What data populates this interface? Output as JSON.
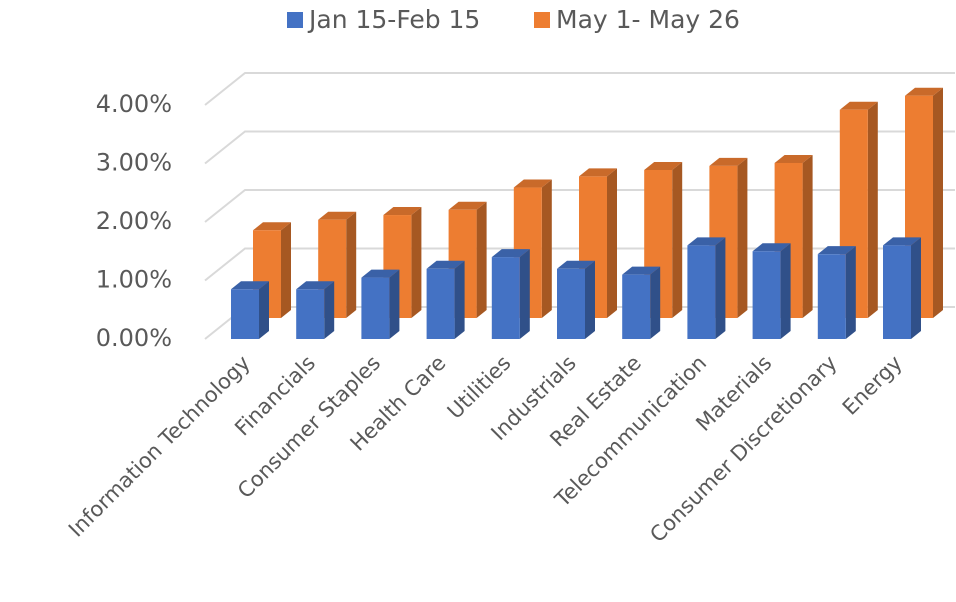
{
  "chart_data": {
    "type": "bar3d",
    "categories": [
      "Information Technology",
      "Financials",
      "Consumer Staples",
      "Health Care",
      "Utilities",
      "Industrials",
      "Real Estate",
      "Telecommunication",
      "Materials",
      "Consumer Discretionary",
      "Energy"
    ],
    "series": [
      {
        "name": "Jan 15-Feb 15",
        "color": "#4472c4",
        "values": [
          0.85,
          0.85,
          1.05,
          1.2,
          1.4,
          1.2,
          1.1,
          1.6,
          1.5,
          1.45,
          1.6
        ]
      },
      {
        "name": "May 1- May 26",
        "color": "#ed7d31",
        "values": [
          1.5,
          1.68,
          1.76,
          1.85,
          2.23,
          2.42,
          2.53,
          2.6,
          2.65,
          3.56,
          3.8
        ]
      }
    ],
    "ylim": [
      0,
      4
    ],
    "yticks": [
      {
        "value": 0,
        "label": "0.00%"
      },
      {
        "value": 1,
        "label": "1.00%"
      },
      {
        "value": 2,
        "label": "2.00%"
      },
      {
        "value": 3,
        "label": "3.00%"
      },
      {
        "value": 4,
        "label": "4.00%"
      }
    ],
    "grid": true,
    "legend": "top"
  }
}
